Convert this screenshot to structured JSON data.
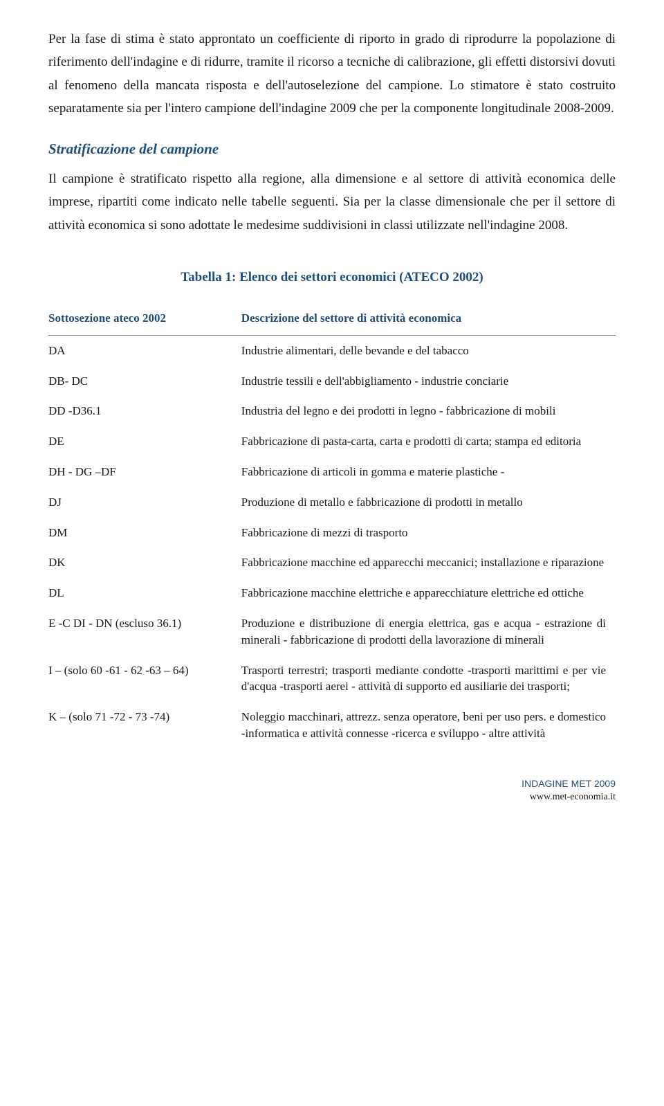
{
  "paragraphs": {
    "p1": "Per la fase di stima è stato approntato un coefficiente di riporto in grado di riprodurre la popolazione di riferimento dell'indagine e di ridurre, tramite il ricorso a tecniche di calibrazione, gli effetti distorsivi dovuti al fenomeno della mancata risposta e dell'autoselezione del campione. Lo stimatore è stato costruito separatamente sia per l'intero campione dell'indagine 2009 che per la componente longitudinale 2008-2009.",
    "p2": "Il campione è stratificato rispetto alla regione, alla dimensione e al settore di attività economica delle imprese, ripartiti come indicato nelle tabelle seguenti. Sia per la classe dimensionale che per il settore di attività economica si sono adottate le medesime suddivisioni in classi utilizzate nell'indagine 2008."
  },
  "headings": {
    "section": "Stratificazione del campione",
    "table_title": "Tabella 1: Elenco dei settori economici (ATECO 2002)"
  },
  "table": {
    "header_left": "Sottosezione ateco 2002",
    "header_right": "Descrizione del settore di attività economica",
    "rows": [
      {
        "code": "DA",
        "desc": "Industrie alimentari, delle bevande e del tabacco"
      },
      {
        "code": "DB- DC",
        "desc": "Industrie tessili e dell'abbigliamento - industrie conciarie"
      },
      {
        "code": "DD -D36.1",
        "desc": "Industria del legno e dei prodotti in legno - fabbricazione di mobili"
      },
      {
        "code": "DE",
        "desc": "Fabbricazione di pasta-carta, carta e prodotti di carta; stampa ed editoria"
      },
      {
        "code": "DH - DG –DF",
        "desc": "Fabbricazione di articoli in gomma e materie plastiche -"
      },
      {
        "code": "DJ",
        "desc": "Produzione di metallo e fabbricazione di prodotti in metallo"
      },
      {
        "code": "DM",
        "desc": "Fabbricazione di mezzi di trasporto"
      },
      {
        "code": "DK",
        "desc": "Fabbricazione macchine ed apparecchi meccanici; installazione e riparazione"
      },
      {
        "code": "DL",
        "desc": "Fabbricazione macchine elettriche e apparecchiature elettriche ed ottiche"
      },
      {
        "code": "E -C DI - DN (escluso 36.1)",
        "desc": "Produzione e distribuzione di energia elettrica, gas e acqua - estrazione di minerali - fabbricazione di prodotti della lavorazione di minerali"
      },
      {
        "code": "I – (solo 60 -61 - 62 -63 – 64)",
        "desc": "Trasporti terrestri; trasporti mediante condotte -trasporti marittimi e per vie d'acqua -trasporti aerei - attività di supporto ed ausiliarie dei trasporti;"
      },
      {
        "code": "K – (solo 71 -72 - 73 -74)",
        "desc": "Noleggio macchinari, attrezz. senza operatore, beni per uso pers. e domestico -informatica e attività connesse -ricerca e sviluppo - altre attività"
      }
    ]
  },
  "footer": {
    "line1": "INDAGINE MET 2009",
    "line2": "www.met-economia.it"
  }
}
